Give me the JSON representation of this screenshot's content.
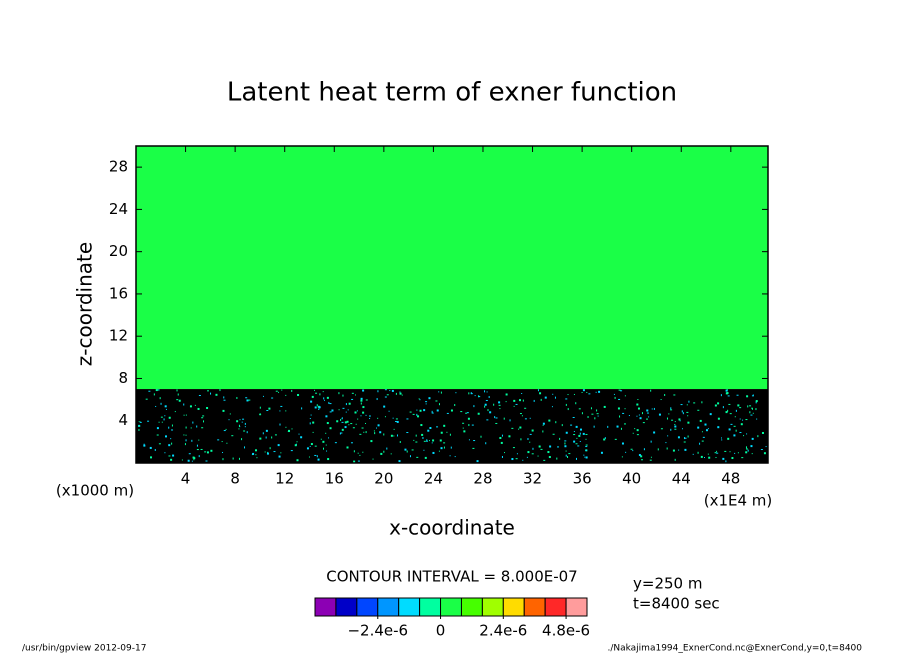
{
  "chart_data": {
    "type": "contour",
    "title": "Latent heat term of exner function",
    "x_label": "x-coordinate",
    "y_label": "z-coordinate",
    "x_unit": "(x1E4 m)",
    "y_unit": "(x1000 m)",
    "xlim": [
      0,
      51
    ],
    "xticks": [
      4,
      8,
      12,
      16,
      20,
      24,
      28,
      32,
      36,
      40,
      44,
      48
    ],
    "ylim": [
      0,
      30
    ],
    "yticks": [
      4,
      8,
      12,
      16,
      20,
      24,
      28
    ],
    "layers": [
      {
        "color": "#000000",
        "zlim": [
          0,
          7
        ]
      },
      {
        "color": "#1aff47",
        "zlim": [
          7,
          30
        ]
      }
    ],
    "contour_interval": "CONTOUR INTERVAL = 8.000E-07",
    "colorbar": {
      "lim": [
        -4.8e-06,
        5.6e-06
      ],
      "colors": [
        "#8c00b4",
        "#0000c8",
        "#0046ff",
        "#0096ff",
        "#00dcff",
        "#00ffa0",
        "#1aff47",
        "#46ff00",
        "#a0ff00",
        "#ffdc00",
        "#ff6400",
        "#ff2828",
        "#ff9c9c"
      ],
      "ticks": [
        {
          "value": -2.4e-06,
          "label": "−2.4e-6"
        },
        0,
        {
          "value": 2.4e-06,
          "label": "2.4e-6"
        },
        {
          "value": 4.8e-06,
          "label": "4.8e-6"
        }
      ]
    },
    "notes": [
      "y=250 m",
      "t=8400 sec"
    ],
    "footer_left": "/usr/bin/gpview   2012-09-17",
    "footer_right": "./Nakajima1994_ExnerCond.nc@ExnerCond,y=0,t=8400"
  }
}
